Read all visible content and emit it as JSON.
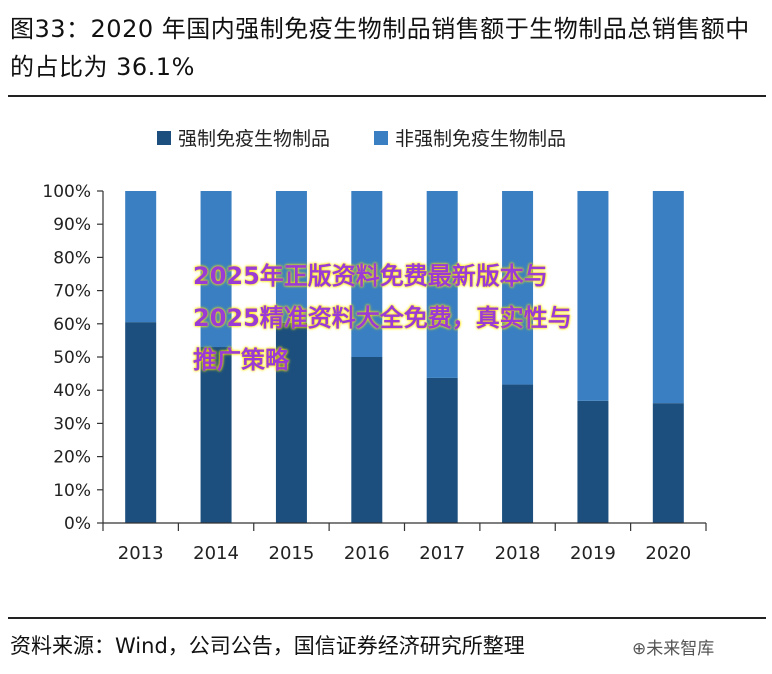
{
  "figure": {
    "title": "图33：2020 年国内强制免疫生物制品销售额于生物制品总销售额中的占比为 36.1%",
    "source": "资料来源：Wind，公司公告，国信证券经济研究所整理"
  },
  "overlay": {
    "text": "2025年正版资料免费最新版本与2025精准资料大全免费，真实性与推广策略"
  },
  "watermark": {
    "brand": "⊕未来智库"
  },
  "colors": {
    "dark": "#1c4f7e",
    "light": "#3a7fc1"
  },
  "chart_data": {
    "type": "bar",
    "stacked": true,
    "categories": [
      "2013",
      "2014",
      "2015",
      "2016",
      "2017",
      "2018",
      "2019",
      "2020"
    ],
    "series": [
      {
        "name": "强制免疫生物制品",
        "values": [
          60.5,
          53,
          60.3,
          50,
          43.7,
          41.7,
          36.8,
          36.1
        ]
      },
      {
        "name": "非强制免疫生物制品",
        "values": [
          39.5,
          47,
          39.7,
          50,
          56.3,
          58.3,
          63.2,
          63.9
        ]
      }
    ],
    "ylim": [
      0,
      100
    ],
    "yticks": [
      "0%",
      "10%",
      "20%",
      "30%",
      "40%",
      "50%",
      "60%",
      "70%",
      "80%",
      "90%",
      "100%"
    ],
    "legend_position": "top",
    "grid": false
  }
}
